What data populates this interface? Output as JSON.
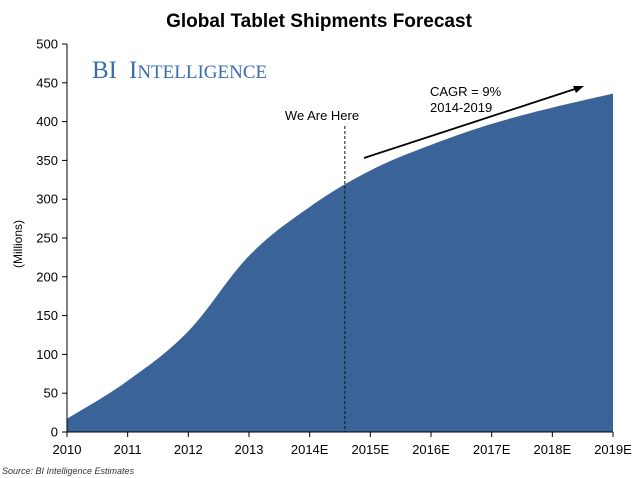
{
  "chart_data": {
    "type": "area",
    "title": "Global Tablet Shipments Forecast",
    "ylabel": "(Millions)",
    "xlabel": "",
    "categories": [
      "2010",
      "2011",
      "2012",
      "2013",
      "2014E",
      "2015E",
      "2016E",
      "2017E",
      "2018E",
      "2019E"
    ],
    "values": [
      17,
      66,
      130,
      227,
      290,
      337,
      370,
      397,
      418,
      436
    ],
    "ylim": [
      0,
      500
    ],
    "yticks": [
      0,
      50,
      100,
      150,
      200,
      250,
      300,
      350,
      400,
      450,
      500
    ],
    "fill_color": "#3a6397",
    "grid": false,
    "annotations": {
      "marker_label": "We Are Here",
      "marker_x": 4.58,
      "cagr_line1": "CAGR = 9%",
      "cagr_line2": "2014-2019"
    },
    "brand": {
      "first": "BI",
      "rest_cap": "I",
      "rest_small": "NTELLIGENCE"
    },
    "source": "Source: BI Intelligence Estimates"
  }
}
